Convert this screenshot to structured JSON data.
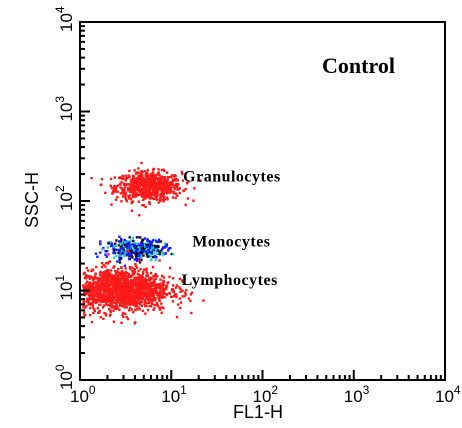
{
  "chart_data": {
    "type": "scatter",
    "title": "Control",
    "xlabel": "FL1-H",
    "ylabel": "SSC-H",
    "xscale": "log",
    "yscale": "log",
    "xlim": [
      1,
      10000
    ],
    "ylim": [
      1,
      10000
    ],
    "x_ticks": [
      {
        "value": 1,
        "base": "10",
        "exp": "0"
      },
      {
        "value": 10,
        "base": "10",
        "exp": "1"
      },
      {
        "value": 100,
        "base": "10",
        "exp": "2"
      },
      {
        "value": 1000,
        "base": "10",
        "exp": "3"
      },
      {
        "value": 10000,
        "base": "10",
        "exp": "4"
      }
    ],
    "y_ticks": [
      {
        "value": 1,
        "base": "10",
        "exp": "0"
      },
      {
        "value": 10,
        "base": "10",
        "exp": "1"
      },
      {
        "value": 100,
        "base": "10",
        "exp": "2"
      },
      {
        "value": 1000,
        "base": "10",
        "exp": "3"
      },
      {
        "value": 10000,
        "base": "10",
        "exp": "4"
      }
    ],
    "grid": false,
    "populations": [
      {
        "name": "Granulocytes",
        "color": "#ff1a1a",
        "x_center": 5.5,
        "y_center": 150,
        "x_log_spread": 0.18,
        "y_log_spread": 0.08,
        "label_x": 13.5,
        "label_y": 165
      },
      {
        "name": "Monocytes",
        "color": "#1a1aff",
        "secondary_color": "#22cccc",
        "x_center": 4.0,
        "y_center": 30,
        "x_log_spread": 0.15,
        "y_log_spread": 0.05,
        "label_x": 17,
        "label_y": 31
      },
      {
        "name": "Lymphocytes",
        "color": "#ff1a1a",
        "x_center": 2.6,
        "y_center": 10.5,
        "x_log_spread": 0.28,
        "y_log_spread": 0.12,
        "label_x": 13,
        "label_y": 11.5
      }
    ]
  }
}
